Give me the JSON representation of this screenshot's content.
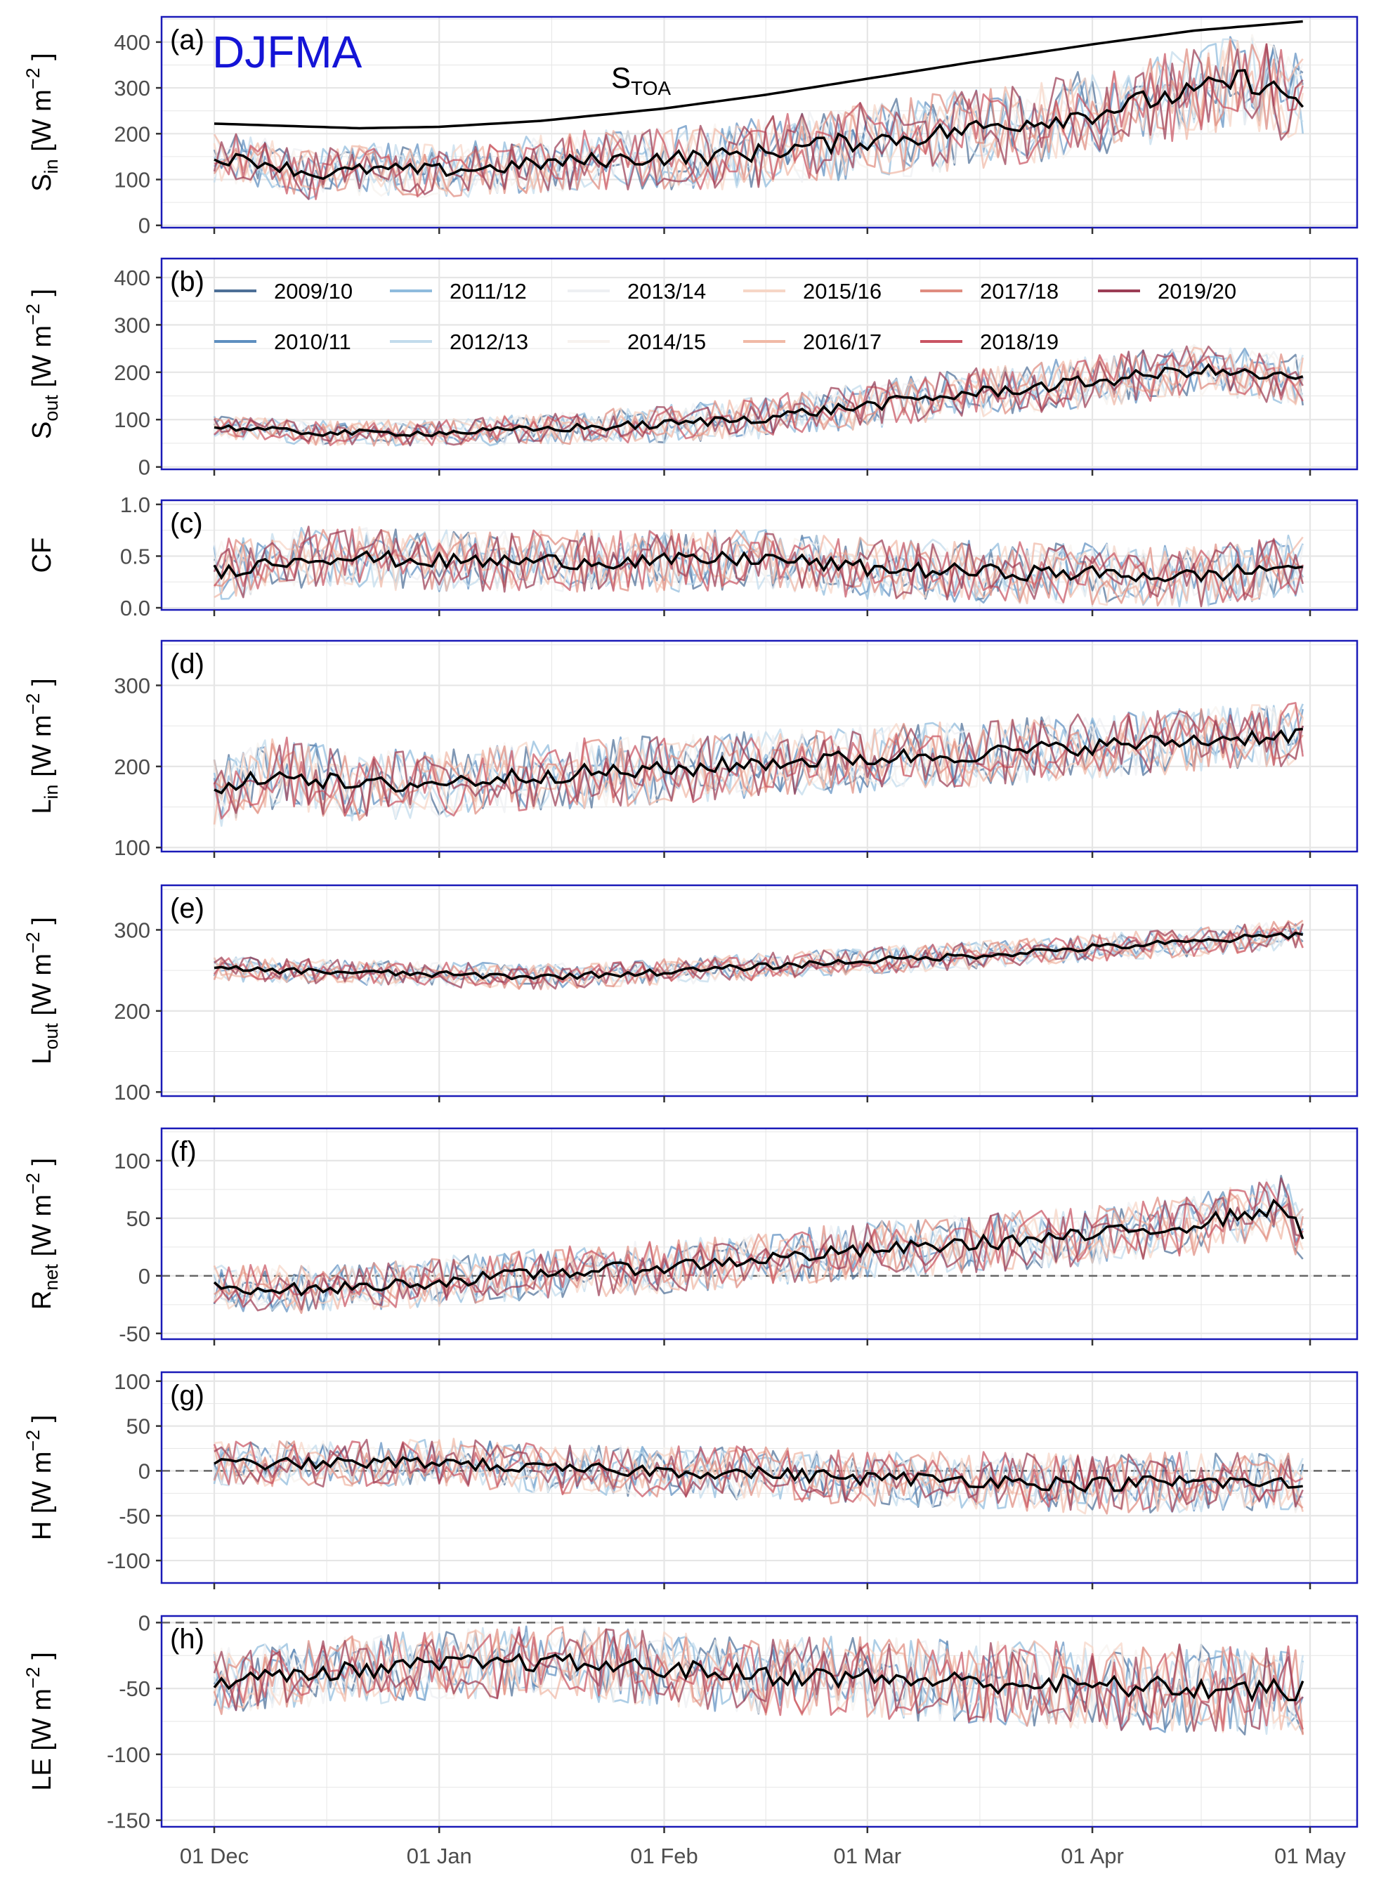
{
  "figure": {
    "season_label": "DJFMA",
    "x_tick_labels": [
      "01 Dec",
      "01 Jan",
      "01 Feb",
      "01 Mar",
      "01 Apr",
      "01 May"
    ],
    "legend": [
      "2009/10",
      "2010/11",
      "2011/12",
      "2012/13",
      "2013/14",
      "2014/15",
      "2015/16",
      "2016/17",
      "2017/18",
      "2018/19",
      "2019/20"
    ],
    "stoa_label": {
      "main": "S",
      "sub": "TOA"
    }
  },
  "colors": {
    "panel_border": "#1a1ab8",
    "season_label": "#1414d6",
    "mean_line": "#000000",
    "grid": "#e6e6e6",
    "zero_line": "#666666",
    "years": [
      "#4d6f97",
      "#5e8fc0",
      "#8fbbdd",
      "#c2dbec",
      "#eef0f3",
      "#f7f2ef",
      "#f6d6c6",
      "#f0b9a6",
      "#df8c80",
      "#c95463",
      "#9b3d55"
    ]
  },
  "chart_data": [
    {
      "type": "line",
      "panel_label": "(a)",
      "ylabel": {
        "main": "S",
        "sub": "in",
        "unit": " [W m",
        "sup": "−2",
        "end": " ]"
      },
      "ylim": [
        -5,
        455
      ],
      "yticks": [
        0,
        100,
        200,
        300,
        400
      ],
      "x_start": "2009-12-01",
      "x_end": "2010-04-30",
      "mean": [
        {
          "x": "2009-12-01",
          "y": 148
        },
        {
          "x": "2009-12-08",
          "y": 138
        },
        {
          "x": "2009-12-15",
          "y": 110
        },
        {
          "x": "2009-12-22",
          "y": 122
        },
        {
          "x": "2010-01-01",
          "y": 120
        },
        {
          "x": "2010-01-08",
          "y": 125
        },
        {
          "x": "2010-01-15",
          "y": 135
        },
        {
          "x": "2010-01-22",
          "y": 142
        },
        {
          "x": "2010-02-01",
          "y": 148
        },
        {
          "x": "2010-02-08",
          "y": 150
        },
        {
          "x": "2010-02-15",
          "y": 160
        },
        {
          "x": "2010-02-22",
          "y": 175
        },
        {
          "x": "2010-03-01",
          "y": 185
        },
        {
          "x": "2010-03-08",
          "y": 195
        },
        {
          "x": "2010-03-15",
          "y": 210
        },
        {
          "x": "2010-03-22",
          "y": 225
        },
        {
          "x": "2010-04-01",
          "y": 245
        },
        {
          "x": "2010-04-08",
          "y": 270
        },
        {
          "x": "2010-04-15",
          "y": 290
        },
        {
          "x": "2010-04-22",
          "y": 320
        },
        {
          "x": "2010-04-30",
          "y": 270
        }
      ],
      "reference": [
        {
          "x": "2009-12-01",
          "y": 222
        },
        {
          "x": "2009-12-21",
          "y": 212
        },
        {
          "x": "2010-01-01",
          "y": 215
        },
        {
          "x": "2010-01-15",
          "y": 228
        },
        {
          "x": "2010-02-01",
          "y": 255
        },
        {
          "x": "2010-02-15",
          "y": 285
        },
        {
          "x": "2010-03-01",
          "y": 320
        },
        {
          "x": "2010-03-15",
          "y": 355
        },
        {
          "x": "2010-04-01",
          "y": 395
        },
        {
          "x": "2010-04-15",
          "y": 425
        },
        {
          "x": "2010-04-30",
          "y": 445
        }
      ],
      "spread": [
        {
          "x": "2009-12-01",
          "y": 55
        },
        {
          "x": "2010-01-01",
          "y": 60
        },
        {
          "x": "2010-02-01",
          "y": 70
        },
        {
          "x": "2010-03-01",
          "y": 85
        },
        {
          "x": "2010-04-01",
          "y": 95
        },
        {
          "x": "2010-04-30",
          "y": 105
        }
      ]
    },
    {
      "type": "line",
      "panel_label": "(b)",
      "ylabel": {
        "main": "S",
        "sub": "out",
        "unit": " [W m",
        "sup": "−2",
        "end": " ]"
      },
      "ylim": [
        -5,
        440
      ],
      "yticks": [
        0,
        100,
        200,
        300,
        400
      ],
      "x_start": "2009-12-01",
      "x_end": "2010-04-30",
      "show_legend": true,
      "mean": [
        {
          "x": "2009-12-01",
          "y": 85
        },
        {
          "x": "2009-12-15",
          "y": 72
        },
        {
          "x": "2010-01-01",
          "y": 72
        },
        {
          "x": "2010-01-15",
          "y": 80
        },
        {
          "x": "2010-02-01",
          "y": 90
        },
        {
          "x": "2010-02-15",
          "y": 105
        },
        {
          "x": "2010-03-01",
          "y": 130
        },
        {
          "x": "2010-03-15",
          "y": 155
        },
        {
          "x": "2010-04-01",
          "y": 180
        },
        {
          "x": "2010-04-15",
          "y": 205
        },
        {
          "x": "2010-04-30",
          "y": 185
        }
      ],
      "spread": [
        {
          "x": "2009-12-01",
          "y": 25
        },
        {
          "x": "2010-01-01",
          "y": 28
        },
        {
          "x": "2010-02-01",
          "y": 40
        },
        {
          "x": "2010-03-01",
          "y": 50
        },
        {
          "x": "2010-04-01",
          "y": 55
        },
        {
          "x": "2010-04-30",
          "y": 55
        }
      ]
    },
    {
      "type": "line",
      "panel_label": "(c)",
      "ylabel": {
        "main": "CF",
        "sub": "",
        "unit": "",
        "sup": "",
        "end": ""
      },
      "ylim": [
        -0.02,
        1.04
      ],
      "yticks": [
        0.0,
        0.5,
        1.0
      ],
      "tick_decimals": 1,
      "x_start": "2009-12-01",
      "x_end": "2010-04-30",
      "mean": [
        {
          "x": "2009-12-01",
          "y": 0.35
        },
        {
          "x": "2009-12-15",
          "y": 0.5
        },
        {
          "x": "2010-01-01",
          "y": 0.45
        },
        {
          "x": "2010-01-15",
          "y": 0.45
        },
        {
          "x": "2010-02-01",
          "y": 0.45
        },
        {
          "x": "2010-02-15",
          "y": 0.48
        },
        {
          "x": "2010-03-01",
          "y": 0.38
        },
        {
          "x": "2010-03-15",
          "y": 0.35
        },
        {
          "x": "2010-04-01",
          "y": 0.33
        },
        {
          "x": "2010-04-15",
          "y": 0.3
        },
        {
          "x": "2010-04-30",
          "y": 0.42
        }
      ],
      "spread": [
        {
          "x": "2009-12-01",
          "y": 0.3
        },
        {
          "x": "2010-04-30",
          "y": 0.3
        }
      ]
    },
    {
      "type": "line",
      "panel_label": "(d)",
      "ylabel": {
        "main": "L",
        "sub": "in",
        "unit": " [W m",
        "sup": "−2",
        "end": " ]"
      },
      "ylim": [
        95,
        355
      ],
      "yticks": [
        100,
        200,
        300
      ],
      "x_start": "2009-12-01",
      "x_end": "2010-04-30",
      "mean": [
        {
          "x": "2009-12-01",
          "y": 165
        },
        {
          "x": "2009-12-10",
          "y": 195
        },
        {
          "x": "2009-12-20",
          "y": 175
        },
        {
          "x": "2010-01-01",
          "y": 180
        },
        {
          "x": "2010-01-15",
          "y": 190
        },
        {
          "x": "2010-02-01",
          "y": 195
        },
        {
          "x": "2010-02-15",
          "y": 205
        },
        {
          "x": "2010-03-01",
          "y": 210
        },
        {
          "x": "2010-03-15",
          "y": 215
        },
        {
          "x": "2010-04-01",
          "y": 225
        },
        {
          "x": "2010-04-15",
          "y": 232
        },
        {
          "x": "2010-04-30",
          "y": 240
        }
      ],
      "spread": [
        {
          "x": "2009-12-01",
          "y": 45
        },
        {
          "x": "2010-04-30",
          "y": 40
        }
      ]
    },
    {
      "type": "line",
      "panel_label": "(e)",
      "ylabel": {
        "main": "L",
        "sub": "out",
        "unit": " [W m",
        "sup": "−2",
        "end": " ]"
      },
      "ylim": [
        95,
        355
      ],
      "yticks": [
        100,
        200,
        300
      ],
      "x_start": "2009-12-01",
      "x_end": "2010-04-30",
      "mean": [
        {
          "x": "2009-12-01",
          "y": 252
        },
        {
          "x": "2010-01-01",
          "y": 245
        },
        {
          "x": "2010-01-15",
          "y": 242
        },
        {
          "x": "2010-02-01",
          "y": 248
        },
        {
          "x": "2010-02-15",
          "y": 255
        },
        {
          "x": "2010-03-01",
          "y": 262
        },
        {
          "x": "2010-03-15",
          "y": 268
        },
        {
          "x": "2010-04-01",
          "y": 278
        },
        {
          "x": "2010-04-15",
          "y": 285
        },
        {
          "x": "2010-04-30",
          "y": 295
        }
      ],
      "spread": [
        {
          "x": "2009-12-01",
          "y": 15
        },
        {
          "x": "2010-04-30",
          "y": 18
        }
      ]
    },
    {
      "type": "line",
      "panel_label": "(f)",
      "ylabel": {
        "main": "R",
        "sub": "net",
        "unit": " [W m",
        "sup": "−2",
        "end": " ]"
      },
      "ylim": [
        -55,
        128
      ],
      "yticks": [
        -50,
        0,
        50,
        100
      ],
      "zero_line": true,
      "x_start": "2009-12-01",
      "x_end": "2010-04-30",
      "mean": [
        {
          "x": "2009-12-01",
          "y": -10
        },
        {
          "x": "2009-12-15",
          "y": -12
        },
        {
          "x": "2010-01-01",
          "y": -5
        },
        {
          "x": "2010-01-15",
          "y": 2
        },
        {
          "x": "2010-02-01",
          "y": 8
        },
        {
          "x": "2010-02-15",
          "y": 15
        },
        {
          "x": "2010-03-01",
          "y": 22
        },
        {
          "x": "2010-03-15",
          "y": 28
        },
        {
          "x": "2010-04-01",
          "y": 35
        },
        {
          "x": "2010-04-15",
          "y": 45
        },
        {
          "x": "2010-04-27",
          "y": 60
        },
        {
          "x": "2010-04-30",
          "y": 38
        }
      ],
      "spread": [
        {
          "x": "2009-12-01",
          "y": 20
        },
        {
          "x": "2010-04-30",
          "y": 28
        }
      ]
    },
    {
      "type": "line",
      "panel_label": "(g)",
      "ylabel": {
        "main": "H",
        "sub": "",
        "unit": " [W m",
        "sup": "−2",
        "end": " ]"
      },
      "ylim": [
        -125,
        110
      ],
      "yticks": [
        -100,
        -50,
        0,
        50,
        100
      ],
      "zero_line": true,
      "x_start": "2009-12-01",
      "x_end": "2010-04-30",
      "mean": [
        {
          "x": "2009-12-01",
          "y": 8
        },
        {
          "x": "2009-12-15",
          "y": 8
        },
        {
          "x": "2010-01-01",
          "y": 10
        },
        {
          "x": "2010-01-15",
          "y": 2
        },
        {
          "x": "2010-02-01",
          "y": 0
        },
        {
          "x": "2010-02-15",
          "y": -3
        },
        {
          "x": "2010-03-01",
          "y": -8
        },
        {
          "x": "2010-03-15",
          "y": -10
        },
        {
          "x": "2010-04-01",
          "y": -15
        },
        {
          "x": "2010-04-15",
          "y": -12
        },
        {
          "x": "2010-04-30",
          "y": -15
        }
      ],
      "spread": [
        {
          "x": "2009-12-01",
          "y": 25
        },
        {
          "x": "2010-04-30",
          "y": 35
        }
      ]
    },
    {
      "type": "line",
      "panel_label": "(h)",
      "ylabel": {
        "main": "LE",
        "sub": "",
        "unit": " [W m",
        "sup": "−2",
        "end": " ]"
      },
      "ylim": [
        -155,
        5
      ],
      "yticks": [
        -150,
        -100,
        -50,
        0
      ],
      "zero_line": true,
      "x_start": "2009-12-01",
      "x_end": "2010-04-30",
      "mean": [
        {
          "x": "2009-12-01",
          "y": -45
        },
        {
          "x": "2009-12-15",
          "y": -38
        },
        {
          "x": "2010-01-01",
          "y": -32
        },
        {
          "x": "2010-01-15",
          "y": -30
        },
        {
          "x": "2010-02-01",
          "y": -35
        },
        {
          "x": "2010-02-15",
          "y": -40
        },
        {
          "x": "2010-03-01",
          "y": -42
        },
        {
          "x": "2010-03-15",
          "y": -45
        },
        {
          "x": "2010-04-01",
          "y": -48
        },
        {
          "x": "2010-04-15",
          "y": -50
        },
        {
          "x": "2010-04-30",
          "y": -52
        }
      ],
      "spread": [
        {
          "x": "2009-12-01",
          "y": 25
        },
        {
          "x": "2010-04-30",
          "y": 35
        }
      ]
    }
  ]
}
